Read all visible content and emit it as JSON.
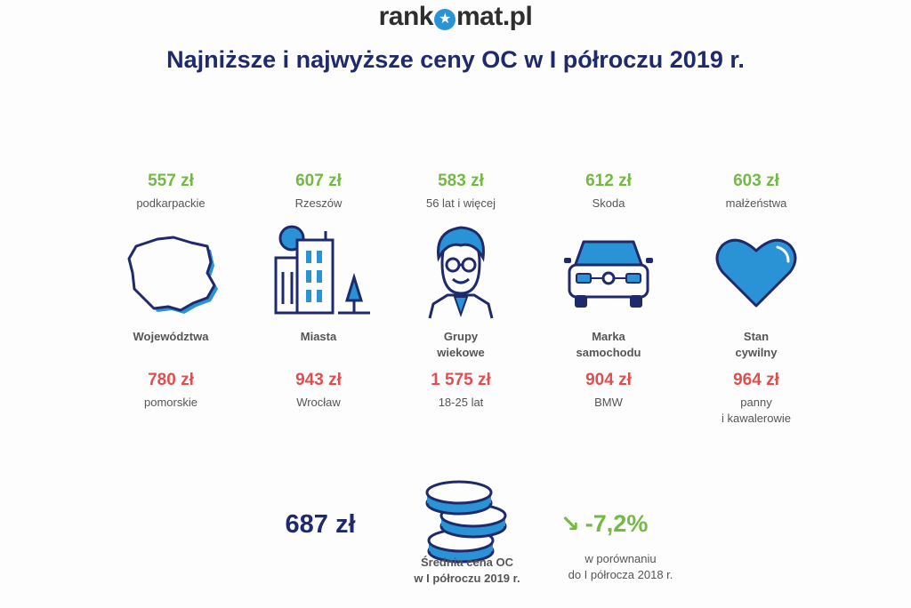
{
  "logo": {
    "left": "rank",
    "right": "mat.pl"
  },
  "title": "Najniższe i najwyższe ceny OC w I półroczu 2019 r.",
  "columns": [
    {
      "low_price": "557 zł",
      "low_label": "podkarpackie",
      "category_1": "Województwa",
      "category_2": "",
      "high_price": "780 zł",
      "high_label_1": "pomorskie",
      "high_label_2": "",
      "icon": "poland-map-icon"
    },
    {
      "low_price": "607 zł",
      "low_label": "Rzeszów",
      "category_1": "Miasta",
      "category_2": "",
      "high_price": "943 zł",
      "high_label_1": "Wrocław",
      "high_label_2": "",
      "icon": "city-buildings-icon"
    },
    {
      "low_price": "583 zł",
      "low_label": "56 lat i więcej",
      "category_1": "Grupy",
      "category_2": "wiekowe",
      "high_price": "1 575 zł",
      "high_label_1": "18-25 lat",
      "high_label_2": "",
      "icon": "man-glasses-icon"
    },
    {
      "low_price": "612 zł",
      "low_label": "Skoda",
      "category_1": "Marka",
      "category_2": "samochodu",
      "high_price": "904 zł",
      "high_label_1": "BMW",
      "high_label_2": "",
      "icon": "car-front-icon"
    },
    {
      "low_price": "603 zł",
      "low_label": "małżeństwa",
      "category_1": "Stan",
      "category_2": "cywilny",
      "high_price": "964 zł",
      "high_label_1": "panny",
      "high_label_2": "i kawalerowie",
      "icon": "heart-icon"
    }
  ],
  "average": {
    "value": "687 zł",
    "label_1": "Średnia cena OC",
    "label_2": "w I półroczu 2019 r.",
    "icon": "coins-icon"
  },
  "change": {
    "value": "-7,2%",
    "label_1": "w porównaniu",
    "label_2": "do I półrocza 2018 r.",
    "icon": "arrow-down-right-icon"
  },
  "colors": {
    "navy": "#1e2a6b",
    "blue": "#2a93d5",
    "green": "#74b943",
    "red": "#e04e4e"
  }
}
